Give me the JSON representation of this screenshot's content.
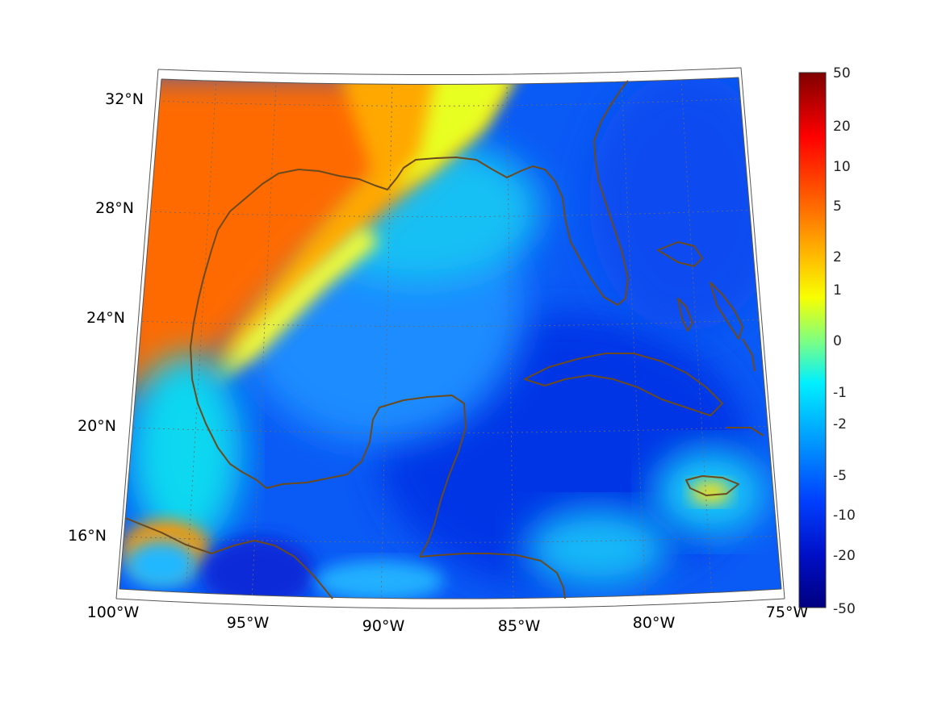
{
  "map": {
    "region": "Gulf of Mexico and Caribbean",
    "lat_labels": [
      "32°N",
      "28°N",
      "24°N",
      "20°N",
      "16°N"
    ],
    "lon_labels": [
      "100°W",
      "95°W",
      "90°W",
      "85°W",
      "80°W",
      "75°W"
    ],
    "extent": {
      "lon": [
        -100,
        -75
      ],
      "lat": [
        14,
        33
      ]
    },
    "coastline_color": "#6b4a1e"
  },
  "colorbar": {
    "ticks": [
      "50",
      "20",
      "10",
      "5",
      "2",
      "1",
      "0",
      "-1",
      "-2",
      "-5",
      "-10",
      "-20",
      "-50"
    ],
    "colormap": "jet",
    "scale": "symmetric log"
  },
  "colors": {
    "warm": "#ff6400",
    "orange": "#ffa000",
    "yellow": "#f0ff10",
    "cyan": "#00d8f0",
    "light_blue": "#00a0ff",
    "blue": "#0050ff",
    "deep_blue": "#0030e8"
  }
}
